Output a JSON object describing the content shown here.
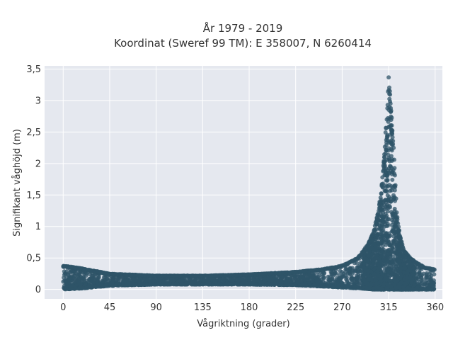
{
  "chart_data": {
    "type": "scatter",
    "title": "År 1979 - 2019",
    "subtitle": "Koordinat (Sweref 99 TM): E 358007, N 6260414",
    "xlabel": "Vågriktning (grader)",
    "ylabel": "Signifikant våghöjd (m)",
    "xlim": [
      -18,
      367
    ],
    "ylim": [
      -0.15,
      3.55
    ],
    "xticks": [
      0,
      45,
      90,
      135,
      180,
      225,
      270,
      315,
      360
    ],
    "xtick_labels": [
      "0",
      "45",
      "90",
      "135",
      "180",
      "225",
      "270",
      "315",
      "360"
    ],
    "yticks": [
      0,
      0.5,
      1,
      1.5,
      2,
      2.5,
      3,
      3.5
    ],
    "ytick_labels": [
      "0",
      "0,5",
      "1",
      "1,5",
      "2",
      "2,5",
      "3",
      "3,5"
    ],
    "grid": true,
    "marker_color": "#2f5468",
    "plot_background": "#e5e8ef",
    "envelope": {
      "direction": [
        0,
        20,
        45,
        90,
        135,
        180,
        225,
        250,
        270,
        285,
        295,
        300,
        305,
        308,
        310,
        312,
        314,
        315,
        316,
        318,
        320,
        323,
        326,
        330,
        335,
        340,
        350,
        360
      ],
      "max_height": [
        0.38,
        0.33,
        0.25,
        0.22,
        0.22,
        0.24,
        0.28,
        0.32,
        0.38,
        0.5,
        0.72,
        0.9,
        1.25,
        1.6,
        2.0,
        2.5,
        3.0,
        3.38,
        3.2,
        2.75,
        2.2,
        1.2,
        0.85,
        0.62,
        0.52,
        0.45,
        0.35,
        0.32
      ],
      "min_height": [
        0.0,
        0.02,
        0.06,
        0.08,
        0.08,
        0.08,
        0.07,
        0.05,
        0.03,
        0.02,
        0.01,
        0.0,
        0.0,
        0.0,
        0.0,
        0.0,
        0.0,
        0.0,
        0.0,
        0.0,
        0.0,
        0.0,
        0.0,
        0.0,
        0.0,
        0.0,
        0.0,
        0.0
      ]
    }
  }
}
